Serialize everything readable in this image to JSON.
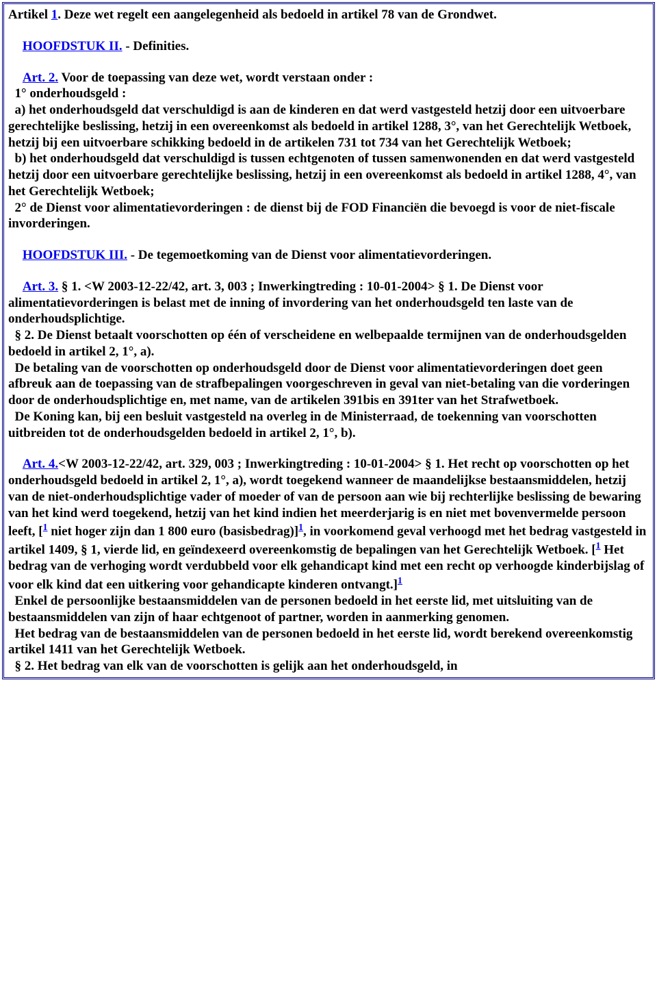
{
  "colors": {
    "link": "#0000ee",
    "text": "#000000",
    "border": "#000080",
    "background": "#ffffff"
  },
  "typography": {
    "font_family": "Times New Roman",
    "font_size_pt": 14.5,
    "font_weight": "bold"
  },
  "footnote_marker": "1",
  "para_art1_a": "Artikel ",
  "para_art1_link": "1",
  "para_art1_b": ". Deze wet regelt een aangelegenheid als bedoeld in artikel 78 van de Grondwet.",
  "para_h2_link": "HOOFDSTUK II.",
  "para_h2_rest": " - Definities.",
  "para_art2_link": "Art. 2.",
  "para_art2_body": " Voor de toepassing van deze wet, wordt verstaan onder :\n  1° onderhoudsgeld :\n  a) het onderhoudsgeld dat verschuldigd is aan de kinderen en dat werd vastgesteld hetzij door een uitvoerbare gerechtelijke beslissing, hetzij in een overeenkomst als bedoeld in artikel 1288, 3°, van het Gerechtelijk Wetboek, hetzij bij een uitvoerbare schikking bedoeld in de artikelen 731 tot 734 van het Gerechtelijk Wetboek;\n  b) het onderhoudsgeld dat verschuldigd is tussen echtgenoten of tussen samenwonenden en dat werd vastgesteld hetzij door een uitvoerbare gerechtelijke beslissing, hetzij in een overeenkomst als bedoeld in artikel 1288, 4°, van het Gerechtelijk Wetboek;\n  2° de Dienst voor alimentatievorderingen : de dienst bij de FOD Financiën die bevoegd is voor de niet-fiscale invorderingen.",
  "para_h3_link": "HOOFDSTUK III.",
  "para_h3_rest": " - De tegemoetkoming van de Dienst voor alimentatievorderingen.",
  "para_art3_link": "Art. 3.",
  "para_art3_body": " § 1. <W 2003-12-22/42, art. 3, 003 ; Inwerkingtreding : 10-01-2004> § 1. De Dienst voor alimentatievorderingen is belast met de inning of invordering van het onderhoudsgeld ten laste van de onderhoudsplichtige.\n  § 2. De Dienst betaalt voorschotten op één of verscheidene en welbepaalde termijnen van de onderhoudsgelden bedoeld in artikel 2, 1°, a).\n  De betaling van de voorschotten op onderhoudsgeld door de Dienst voor alimentatievorderingen doet geen afbreuk aan de toepassing van de strafbepalingen voorgeschreven in geval van niet-betaling van die vorderingen door de onderhoudsplichtige en, met name, van de artikelen 391bis en 391ter van het Strafwetboek.\n  De Koning kan, bij een besluit vastgesteld na overleg in de Ministerraad, de toekenning van voorschotten uitbreiden tot de onderhoudsgelden bedoeld in artikel 2, 1°, b).",
  "para_art4_link": "Art. 4.",
  "art4_seg1": "<W 2003-12-22/42, art. 329, 003 ; Inwerkingtreding : 10-01-2004> § 1. Het recht op voorschotten op het onderhoudsgeld bedoeld in artikel 2, 1°, a), wordt toegekend wanneer de maandelijkse bestaansmiddelen, hetzij van de niet-onderhoudsplichtige vader of moeder of van de persoon aan wie bij rechterlijke beslissing de bewaring van het kind werd toegekend, hetzij van het kind indien het meerderjarig is en niet met bovenvermelde persoon leeft, [",
  "art4_seg2": " niet hoger zijn dan 1 800 euro (basisbedrag)]",
  "art4_seg3": ", in voorkomend geval verhoogd met het bedrag vastgesteld in artikel 1409, § 1, vierde lid, en geïndexeerd overeenkomstig de bepalingen van het Gerechtelijk Wetboek. [",
  "art4_seg4": " Het bedrag van de verhoging wordt verdubbeld voor elk gehandicapt kind met een recht op verhoogde kinderbijslag of voor elk kind dat een uitkering voor gehandicapte kinderen ontvangt.]",
  "art4_tail": "\n  Enkel de persoonlijke bestaansmiddelen van de personen bedoeld in het eerste lid, met uitsluiting van de bestaansmiddelen van zijn of haar echtgenoot of partner, worden in aanmerking genomen.\n  Het bedrag van de bestaansmiddelen van de personen bedoeld in het eerste lid, wordt berekend overeenkomstig artikel 1411 van het Gerechtelijk Wetboek.\n  § 2. Het bedrag van elk van de voorschotten is gelijk aan het onderhoudsgeld, in"
}
